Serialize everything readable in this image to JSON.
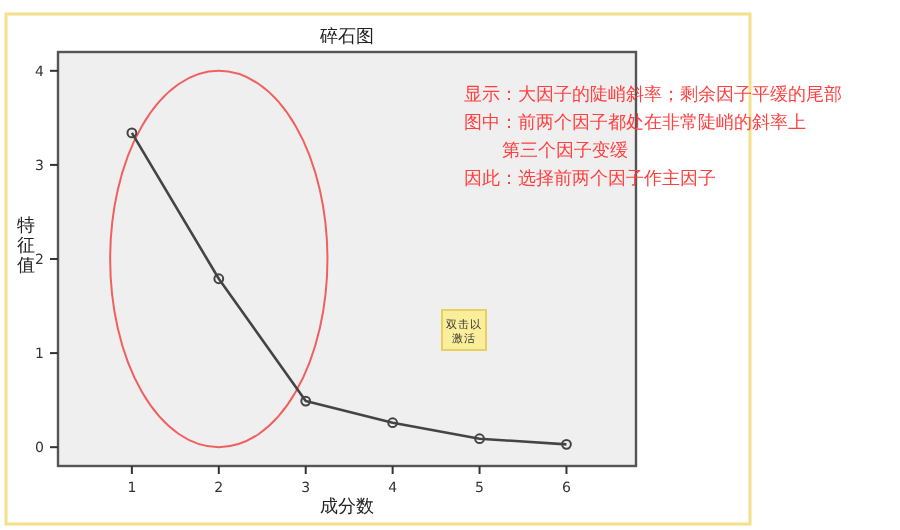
{
  "chart_data": {
    "type": "line",
    "title": "碎石图",
    "xlabel": "成分数",
    "ylabel": "特征值",
    "x": [
      1,
      2,
      3,
      4,
      5,
      6
    ],
    "values": [
      3.34,
      1.79,
      0.49,
      0.26,
      0.09,
      0.03
    ],
    "color": "#444444",
    "marker": "circle",
    "grid": false,
    "xlim": [
      0.15,
      6.8
    ],
    "ylim": [
      -0.2,
      4.2
    ],
    "xticks": [
      1,
      2,
      3,
      4,
      5,
      6
    ],
    "yticks": [
      0,
      1,
      2,
      3,
      4
    ],
    "annotations": [
      "显示：大因子的陡峭斜率；剩余因子平缓的尾部",
      "图中：前两个因子都处在非常陡峭的斜率上",
      "第三个因子变缓",
      "因此：选择前两个因子作主因子",
      "双击以激活"
    ]
  }
}
